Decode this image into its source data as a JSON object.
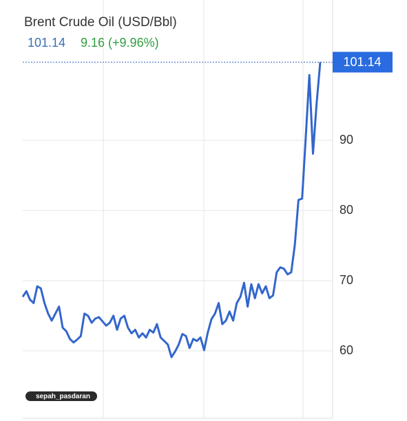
{
  "chart_data": {
    "type": "line",
    "title": "Brent Crude Oil (USD/Bbl)",
    "change": "9.16 (+9.96%)",
    "watermark": "sepah_pasdaran",
    "color": "#3366cc",
    "values": [
      67.7,
      68.5,
      67.3,
      66.8,
      69.2,
      68.9,
      66.8,
      65.3,
      64.3,
      65.3,
      66.3,
      63.3,
      62.8,
      61.7,
      61.2,
      61.6,
      62.1,
      65.3,
      65.0,
      64.0,
      64.6,
      64.8,
      64.2,
      63.6,
      64.0,
      65.0,
      63.0,
      64.6,
      65.0,
      63.3,
      62.5,
      63.0,
      61.9,
      62.5,
      61.9,
      63.0,
      62.6,
      63.8,
      61.9,
      61.4,
      60.9,
      59.1,
      59.9,
      60.9,
      62.4,
      62.1,
      60.4,
      61.7,
      61.4,
      61.9,
      60.1,
      62.6,
      64.5,
      65.3,
      66.8,
      63.8,
      64.3,
      65.6,
      64.3,
      66.8,
      67.7,
      69.7,
      66.3,
      69.5,
      67.5,
      69.5,
      68.2,
      69.2,
      67.5,
      67.9,
      71.2,
      71.9,
      71.7,
      70.9,
      71.2,
      75.1,
      81.5,
      81.7,
      90.3,
      99.3,
      88.1,
      95.2,
      101.14
    ],
    "ylim": [
      50,
      110
    ],
    "yticks": [
      60,
      70,
      80,
      90
    ],
    "grid": true
  }
}
